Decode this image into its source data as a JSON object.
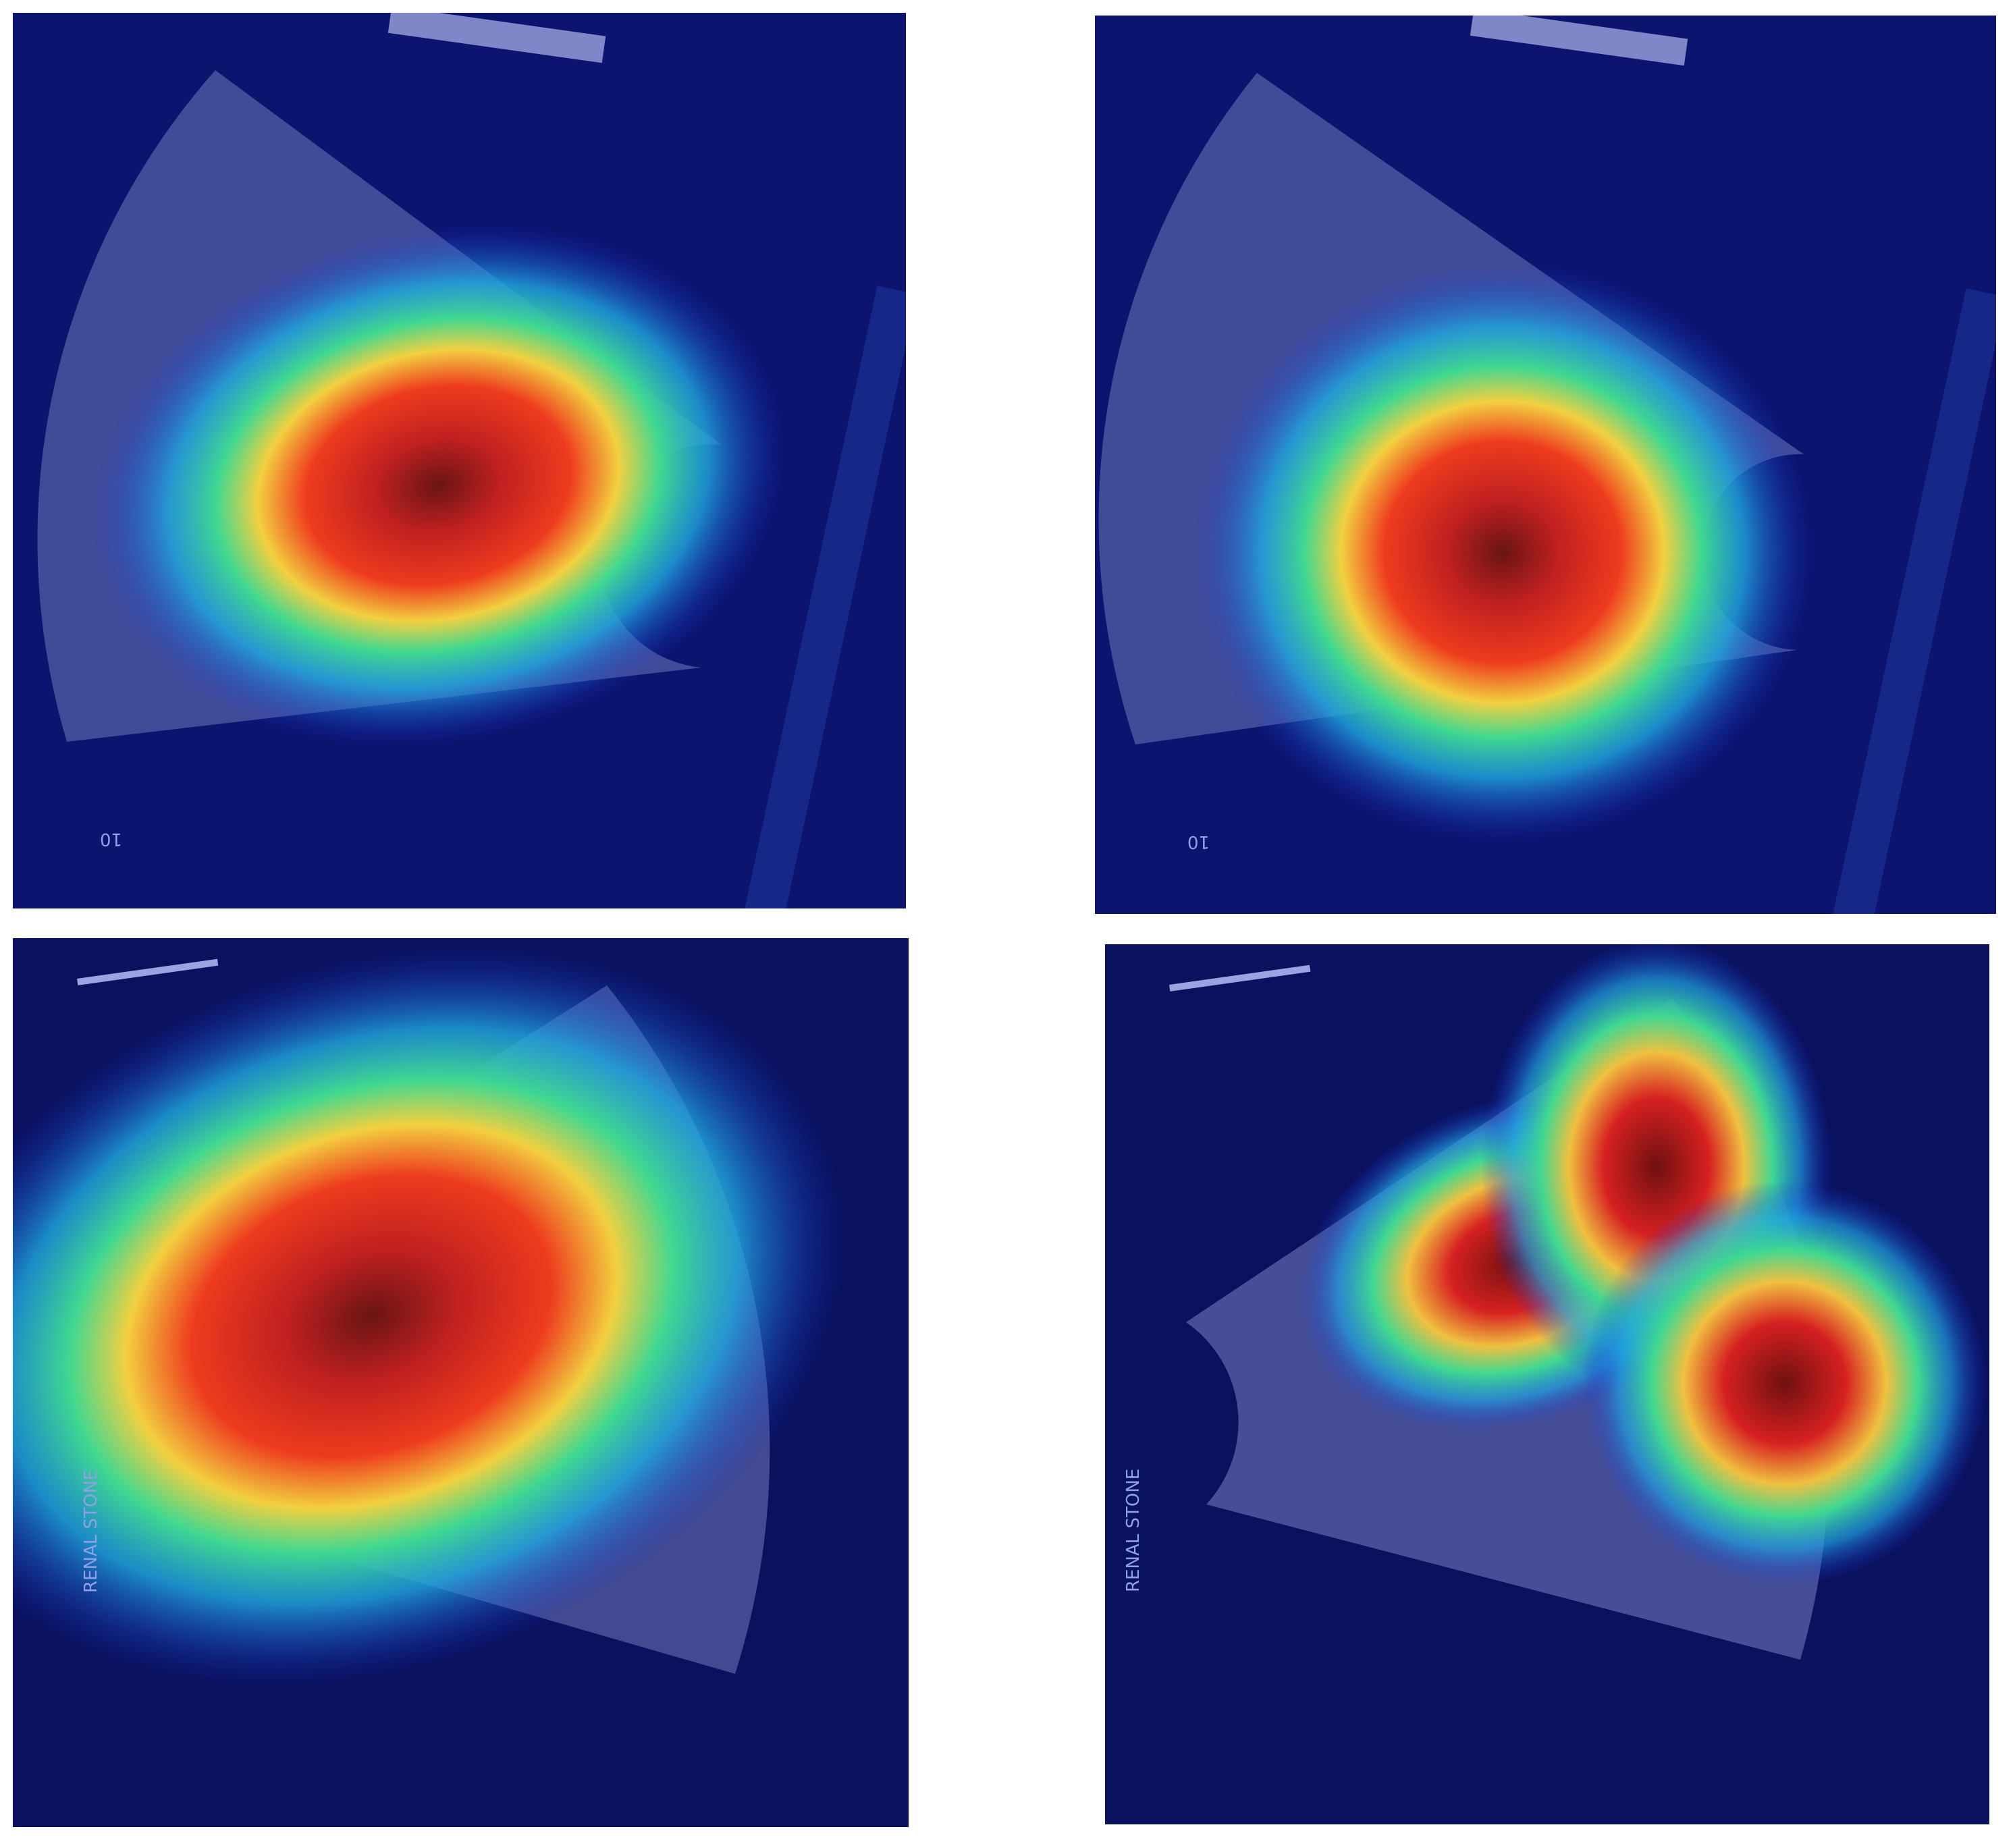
{
  "panels": [
    {
      "texts": [
        "10"
      ]
    },
    {
      "texts": [
        "10"
      ]
    },
    {
      "texts": [
        "RENAL STONE"
      ]
    },
    {
      "texts": [
        "RENAL STONE"
      ]
    }
  ]
}
